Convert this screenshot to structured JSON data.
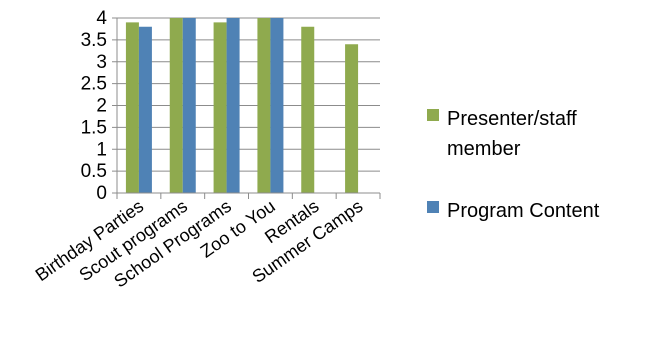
{
  "chart_data": {
    "type": "bar",
    "categories": [
      "Birthday Parties",
      "Scout programs",
      "School Programs",
      "Zoo to You",
      "Rentals",
      "Summer Camps"
    ],
    "series": [
      {
        "name": "Presenter/staff member",
        "values": [
          3.9,
          4,
          3.9,
          4,
          3.8,
          3.4
        ],
        "color": "#8faa4e"
      },
      {
        "name": "Program Content",
        "values": [
          3.8,
          4,
          4,
          4,
          null,
          null
        ],
        "color": "#4f82b5"
      }
    ],
    "y_ticks": [
      "0",
      "0.5",
      "1",
      "1.5",
      "2",
      "2.5",
      "3",
      "3.5",
      "4"
    ],
    "ylim": [
      0,
      4
    ],
    "grid": true,
    "legend": {
      "position": "right",
      "entries": [
        {
          "lines": [
            "Presenter/staff",
            "member"
          ],
          "color": "#8faa4e"
        },
        {
          "lines": [
            "Program Content"
          ],
          "color": "#4f82b5"
        }
      ]
    },
    "colors": {
      "grid": "#8c8c8c",
      "axis": "#8c8c8c"
    }
  }
}
